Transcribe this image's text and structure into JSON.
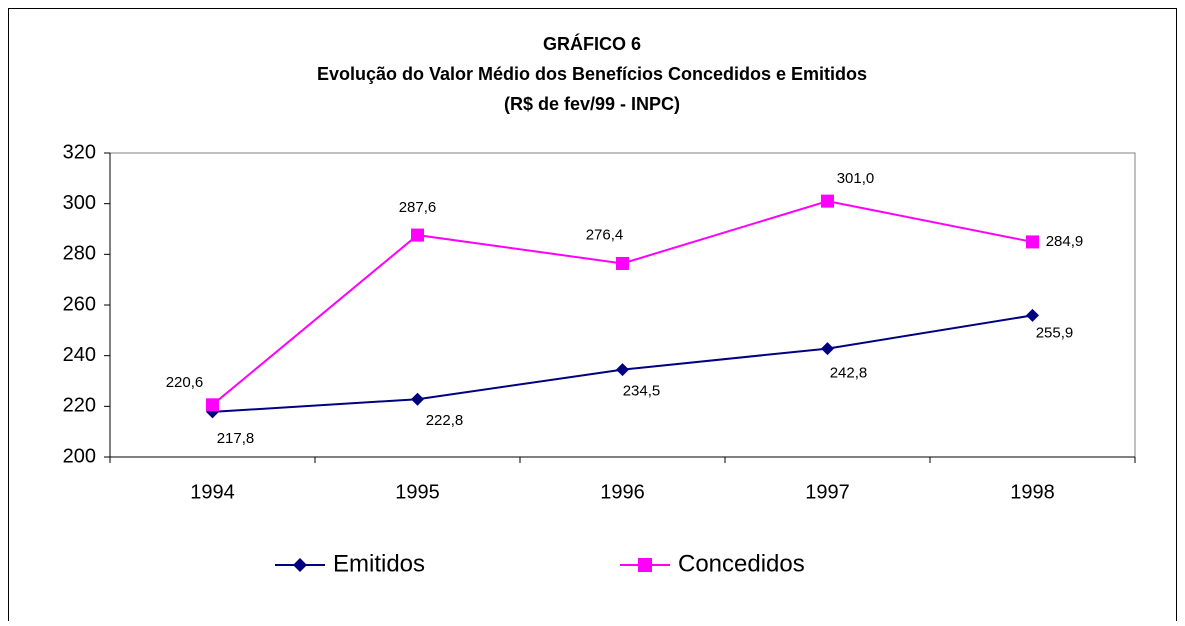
{
  "chart_data": {
    "type": "line",
    "title": "GRÁFICO 6",
    "subtitle": "Evolução do Valor Médio dos Benefícios Concedidos e Emitidos",
    "subtitle2": "(R$ de fev/99 - INPC)",
    "categories": [
      "1994",
      "1995",
      "1996",
      "1997",
      "1998"
    ],
    "series": [
      {
        "name": "Emitidos",
        "color": "#000080",
        "marker": "diamond",
        "values": [
          217.8,
          222.8,
          234.5,
          242.8,
          255.9
        ],
        "value_labels": [
          "217,8",
          "222,8",
          "234,5",
          "242,8",
          "255,9"
        ]
      },
      {
        "name": "Concedidos",
        "color": "#ff00ff",
        "marker": "square",
        "values": [
          220.6,
          287.6,
          276.4,
          301.0,
          284.9
        ],
        "value_labels": [
          "220,6",
          "287,6",
          "276,4",
          "301,0",
          "284,9"
        ]
      }
    ],
    "ylim": [
      200,
      320
    ],
    "yticks": [
      200,
      220,
      240,
      260,
      280,
      300,
      320
    ],
    "grid": false,
    "legend": "bottom"
  }
}
